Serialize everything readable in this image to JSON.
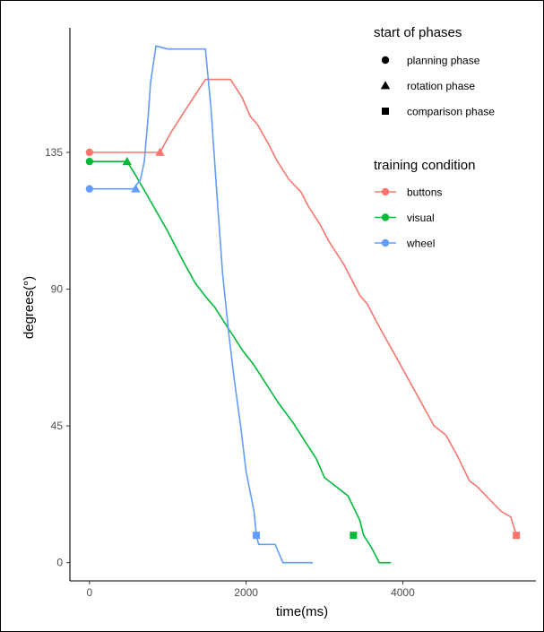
{
  "chart_data": {
    "type": "line",
    "title": "",
    "xlabel": "time(ms)",
    "ylabel": "degrees(°)",
    "xlim": [
      -250,
      5700
    ],
    "ylim": [
      -6,
      176
    ],
    "x_ticks": [
      0,
      2000,
      4000
    ],
    "x_tick_labels": [
      "0",
      "2000",
      "4000"
    ],
    "y_ticks": [
      0,
      45,
      90,
      135
    ],
    "y_tick_labels": [
      "0",
      "45",
      "90",
      "135"
    ],
    "grid": false,
    "legend_position": "top-right",
    "series": [
      {
        "name": "buttons",
        "color": "#F8766D",
        "points": [
          [
            0,
            135
          ],
          [
            900,
            135
          ],
          [
            1050,
            142
          ],
          [
            1300,
            152
          ],
          [
            1480,
            159
          ],
          [
            1800,
            159
          ],
          [
            1950,
            153
          ],
          [
            2050,
            147
          ],
          [
            2150,
            144
          ],
          [
            2300,
            137
          ],
          [
            2400,
            132
          ],
          [
            2550,
            126
          ],
          [
            2700,
            122
          ],
          [
            2800,
            117
          ],
          [
            2950,
            111
          ],
          [
            3050,
            106
          ],
          [
            3250,
            98
          ],
          [
            3350,
            93
          ],
          [
            3450,
            88
          ],
          [
            3550,
            85
          ],
          [
            3650,
            80
          ],
          [
            3800,
            73
          ],
          [
            3950,
            66
          ],
          [
            4100,
            59
          ],
          [
            4250,
            52
          ],
          [
            4400,
            45
          ],
          [
            4550,
            42
          ],
          [
            4700,
            35
          ],
          [
            4850,
            27
          ],
          [
            4950,
            25
          ],
          [
            5100,
            21
          ],
          [
            5250,
            17
          ],
          [
            5380,
            15
          ],
          [
            5450,
            9
          ]
        ],
        "markers": {
          "planning": [
            0,
            135
          ],
          "rotation": [
            900,
            135
          ],
          "comparison": [
            5450,
            9
          ]
        }
      },
      {
        "name": "visual",
        "color": "#00BA38",
        "points": [
          [
            0,
            132
          ],
          [
            480,
            132
          ],
          [
            600,
            127
          ],
          [
            800,
            118
          ],
          [
            1000,
            109
          ],
          [
            1200,
            99
          ],
          [
            1350,
            92
          ],
          [
            1500,
            87
          ],
          [
            1600,
            84
          ],
          [
            1700,
            80
          ],
          [
            1800,
            76
          ],
          [
            1950,
            70
          ],
          [
            2100,
            65
          ],
          [
            2250,
            59
          ],
          [
            2400,
            53
          ],
          [
            2600,
            46
          ],
          [
            2750,
            40
          ],
          [
            2900,
            34
          ],
          [
            3000,
            28
          ],
          [
            3100,
            26
          ],
          [
            3300,
            22
          ],
          [
            3450,
            14
          ],
          [
            3500,
            9
          ],
          [
            3600,
            5
          ],
          [
            3700,
            0
          ],
          [
            3850,
            0
          ]
        ],
        "markers": {
          "planning": [
            0,
            132
          ],
          "rotation": [
            480,
            132
          ],
          "comparison": [
            3370,
            9
          ]
        }
      },
      {
        "name": "wheel",
        "color": "#619CFF",
        "points": [
          [
            0,
            123
          ],
          [
            560,
            123
          ],
          [
            650,
            126
          ],
          [
            700,
            132
          ],
          [
            750,
            147
          ],
          [
            780,
            158
          ],
          [
            850,
            170
          ],
          [
            1000,
            169
          ],
          [
            1150,
            169
          ],
          [
            1300,
            169
          ],
          [
            1480,
            169
          ],
          [
            1550,
            150
          ],
          [
            1630,
            120
          ],
          [
            1700,
            95
          ],
          [
            1780,
            75
          ],
          [
            1850,
            60
          ],
          [
            1930,
            45
          ],
          [
            2000,
            30
          ],
          [
            2100,
            17
          ],
          [
            2130,
            9
          ],
          [
            2160,
            6
          ],
          [
            2370,
            6
          ],
          [
            2470,
            0
          ],
          [
            2850,
            0
          ]
        ],
        "markers": {
          "planning": [
            0,
            123
          ],
          "rotation": [
            590,
            123
          ],
          "comparison": [
            2130,
            9
          ]
        }
      }
    ],
    "legend": {
      "phases_title": "start of phases",
      "phases": [
        {
          "shape": "circle",
          "label": "planning phase"
        },
        {
          "shape": "triangle",
          "label": "rotation phase"
        },
        {
          "shape": "square",
          "label": "comparison phase"
        }
      ],
      "condition_title": "training condition",
      "conditions": [
        {
          "label": "buttons",
          "color": "#F8766D"
        },
        {
          "label": "visual",
          "color": "#00BA38"
        },
        {
          "label": "wheel",
          "color": "#619CFF"
        }
      ]
    }
  }
}
